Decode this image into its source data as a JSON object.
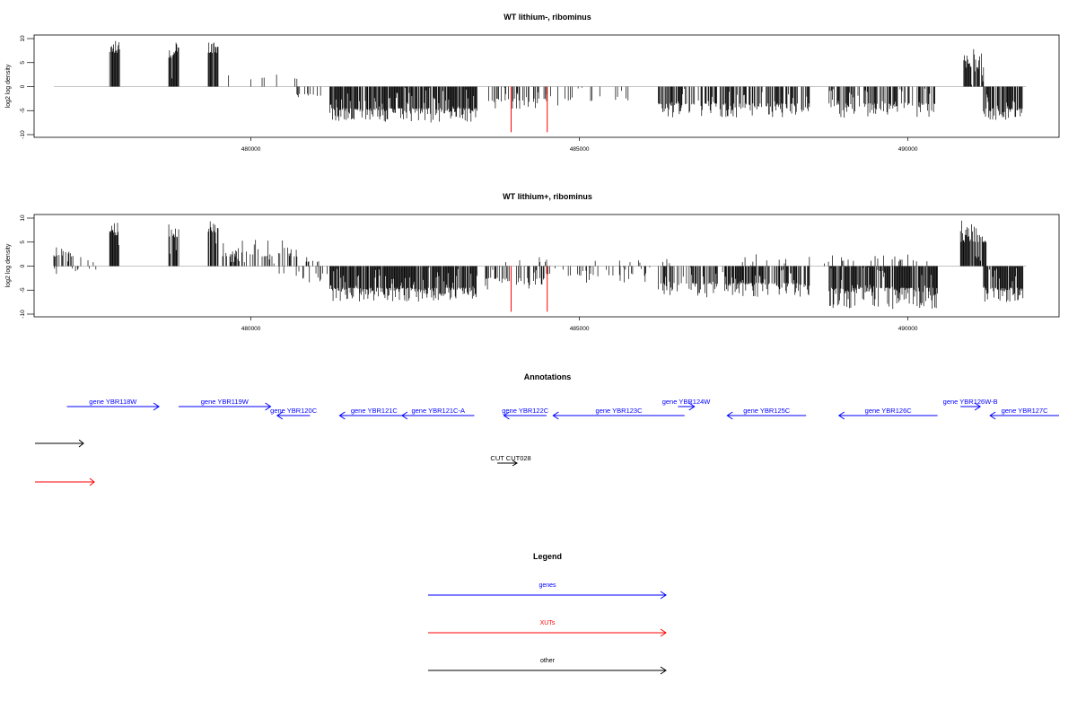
{
  "chart_data": [
    {
      "type": "bar",
      "title": "WT lithium-, ribominus",
      "ylabel": "log2 log density",
      "xlabel": "",
      "xlim": [
        476700,
        492300
      ],
      "ylim": [
        -10,
        10
      ],
      "x_ticks": [
        480000,
        485000,
        490000
      ],
      "y_ticks": [
        -10,
        -5,
        0,
        5,
        10
      ],
      "series": [
        {
          "strand": "plus",
          "segments": [
            {
              "x": [
                477850,
                478000
              ],
              "level": 7,
              "peak": 10,
              "density": 0.9
            },
            {
              "x": [
                478750,
                478900
              ],
              "level": 6,
              "peak": 9.5,
              "density": 0.9
            },
            {
              "x": [
                479350,
                479500
              ],
              "level": 7,
              "peak": 10,
              "density": 0.9
            },
            {
              "x": [
                479500,
                480700
              ],
              "level": 1.5,
              "peak": 4,
              "density": 0.08
            },
            {
              "x": [
                490850,
                491150
              ],
              "level": 4,
              "peak": 8,
              "density": 0.8
            }
          ]
        },
        {
          "strand": "minus",
          "segments": [
            {
              "x": [
                480700,
                481200
              ],
              "level": -1.5,
              "peak": -3,
              "density": 0.15
            },
            {
              "x": [
                481200,
                483450
              ],
              "level": -4.5,
              "peak": -7.5,
              "density": 0.9
            },
            {
              "x": [
                483600,
                484500
              ],
              "level": -2.5,
              "peak": -5,
              "density": 0.35
            },
            {
              "x": [
                484500,
                486000
              ],
              "level": -2,
              "peak": -4,
              "density": 0.15
            },
            {
              "x": [
                486200,
                488500
              ],
              "level": -3.5,
              "peak": -6.5,
              "density": 0.6
            },
            {
              "x": [
                488800,
                490450
              ],
              "level": -3.5,
              "peak": -6.5,
              "density": 0.6
            },
            {
              "x": [
                491150,
                491750
              ],
              "level": -4.5,
              "peak": -7,
              "density": 0.9
            }
          ]
        }
      ],
      "highlights": [
        {
          "x": 483960,
          "value": -9.5,
          "color": "#ff0000"
        },
        {
          "x": 484510,
          "value": -9.5,
          "color": "#ff0000"
        }
      ]
    },
    {
      "type": "bar",
      "title": "WT lithium+, ribominus",
      "ylabel": "log2 log density",
      "xlabel": "",
      "xlim": [
        476700,
        492300
      ],
      "ylim": [
        -10,
        10
      ],
      "x_ticks": [
        480000,
        485000,
        490000
      ],
      "y_ticks": [
        -10,
        -5,
        0,
        5,
        10
      ],
      "series": [
        {
          "strand": "plus",
          "segments": [
            {
              "x": [
                477000,
                477300
              ],
              "level": 2,
              "peak": 4,
              "density": 0.5
            },
            {
              "x": [
                477300,
                477800
              ],
              "level": 0.5,
              "peak": 2,
              "density": 0.05
            },
            {
              "x": [
                477850,
                478000
              ],
              "level": 7,
              "peak": 9.5,
              "density": 0.9
            },
            {
              "x": [
                478750,
                478900
              ],
              "level": 6,
              "peak": 9,
              "density": 0.9
            },
            {
              "x": [
                479350,
                479500
              ],
              "level": 7,
              "peak": 9.5,
              "density": 0.9
            },
            {
              "x": [
                479500,
                480700
              ],
              "level": 2,
              "peak": 5.5,
              "density": 0.45
            },
            {
              "x": [
                480700,
                481200
              ],
              "level": 1,
              "peak": 2.5,
              "density": 0.1
            },
            {
              "x": [
                483500,
                484500
              ],
              "level": 0.8,
              "peak": 2,
              "density": 0.1
            },
            {
              "x": [
                485000,
                486500
              ],
              "level": 0.6,
              "peak": 2,
              "density": 0.06
            },
            {
              "x": [
                487000,
                488500
              ],
              "level": 0.8,
              "peak": 2.5,
              "density": 0.08
            },
            {
              "x": [
                488700,
                490400
              ],
              "level": 1,
              "peak": 2.5,
              "density": 0.15
            },
            {
              "x": [
                490800,
                491200
              ],
              "level": 5,
              "peak": 10,
              "density": 0.85
            }
          ]
        },
        {
          "strand": "minus",
          "segments": [
            {
              "x": [
                477000,
                477800
              ],
              "level": -0.5,
              "peak": -2,
              "density": 0.05
            },
            {
              "x": [
                480400,
                481200
              ],
              "level": -1.5,
              "peak": -3.5,
              "density": 0.2
            },
            {
              "x": [
                481200,
                483450
              ],
              "level": -4.5,
              "peak": -7.5,
              "density": 0.9
            },
            {
              "x": [
                483500,
                484500
              ],
              "level": -2.5,
              "peak": -5,
              "density": 0.45
            },
            {
              "x": [
                484500,
                486100
              ],
              "level": -1.5,
              "peak": -3.5,
              "density": 0.2
            },
            {
              "x": [
                486200,
                488500
              ],
              "level": -3.5,
              "peak": -6.5,
              "density": 0.6
            },
            {
              "x": [
                488800,
                490450
              ],
              "level": -4.5,
              "peak": -9,
              "density": 0.9
            },
            {
              "x": [
                491150,
                491750
              ],
              "level": -4.5,
              "peak": -7.5,
              "density": 0.9
            }
          ]
        }
      ],
      "highlights": [
        {
          "x": 483960,
          "value": -9.5,
          "color": "#ff0000"
        },
        {
          "x": 484510,
          "value": -9.5,
          "color": "#ff0000"
        }
      ]
    }
  ],
  "annotations": {
    "title": "Annotations",
    "genes": [
      {
        "label": "gene YBR118W",
        "start": 477200,
        "end": 478600,
        "strand": "+",
        "row": 0
      },
      {
        "label": "gene YBR119W",
        "start": 478900,
        "end": 480300,
        "strand": "+",
        "row": 0
      },
      {
        "label": "gene YBR120C",
        "start": 480400,
        "end": 480900,
        "strand": "-",
        "row": 1
      },
      {
        "label": "gene YBR121C",
        "start": 481350,
        "end": 482400,
        "strand": "-",
        "row": 1
      },
      {
        "label": "gene YBR121C-A",
        "start": 482300,
        "end": 483400,
        "strand": "-",
        "row": 1
      },
      {
        "label": "gene YBR122C",
        "start": 483850,
        "end": 484500,
        "strand": "-",
        "row": 1
      },
      {
        "label": "gene YBR123C",
        "start": 484600,
        "end": 486600,
        "strand": "-",
        "row": 1
      },
      {
        "label": "gene YBR124W",
        "start": 486500,
        "end": 486750,
        "strand": "+",
        "row": 0
      },
      {
        "label": "gene YBR125C",
        "start": 487250,
        "end": 488450,
        "strand": "-",
        "row": 1
      },
      {
        "label": "gene YBR126C",
        "start": 488950,
        "end": 490450,
        "strand": "-",
        "row": 1
      },
      {
        "label": "gene YBR126W-B",
        "start": 490800,
        "end": 491100,
        "strand": "+",
        "row": 0
      },
      {
        "label": "gene YBR127C",
        "start": 491250,
        "end": 492300,
        "strand": "-",
        "row": 1
      }
    ],
    "other": [
      {
        "label": "CUT CUT028",
        "start": 483750,
        "end": 484050,
        "strand": "+"
      }
    ]
  },
  "legend": {
    "title": "Legend",
    "items": [
      {
        "label": "genes",
        "color": "#0000ff"
      },
      {
        "label": "XUTs",
        "color": "#ff0000"
      },
      {
        "label": "other",
        "color": "#000000"
      }
    ]
  },
  "colors": {
    "genes": "#0000ff",
    "xuts": "#ff0000",
    "other": "#000000",
    "signal": "#000000"
  }
}
